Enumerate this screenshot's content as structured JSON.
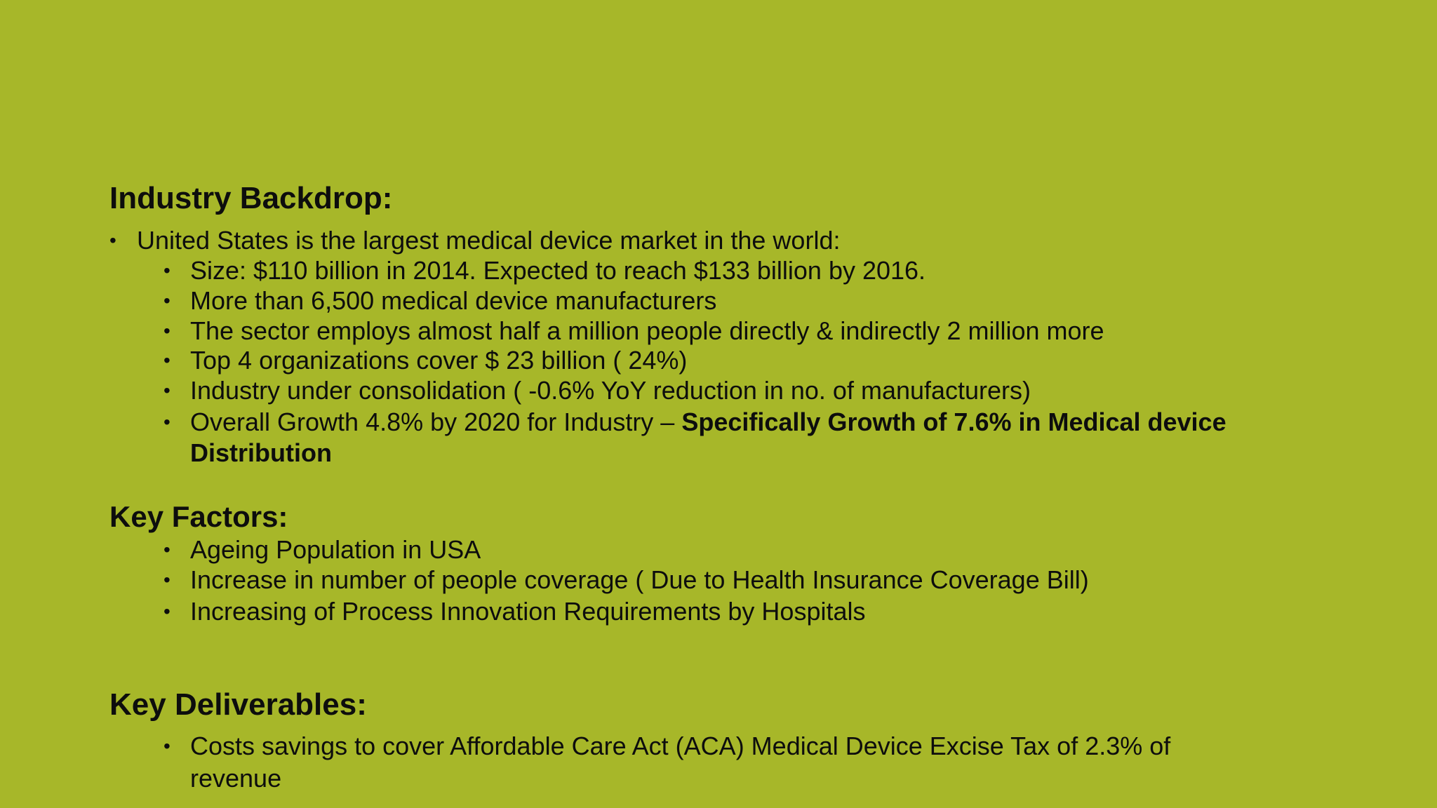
{
  "backdrop": {
    "heading": "Industry Backdrop:",
    "intro": "United States is the largest medical device market in the world:",
    "items": [
      "Size: $110 billion in 2014. Expected to reach $133 billion by 2016.",
      "More than 6,500 medical device manufacturers",
      "The sector employs almost half a million people directly & indirectly 2 million more",
      "Top 4 organizations cover $ 23 billion ( 24%)",
      "Industry under consolidation ( -0.6% YoY reduction in no. of manufacturers)"
    ],
    "growth_plain": "Overall Growth 4.8% by 2020 for Industry – ",
    "growth_bold_line1": "Specifically Growth of 7.6% in Medical device",
    "growth_bold_line2": "Distribution"
  },
  "factors": {
    "heading": "Key Factors:",
    "items": [
      "Ageing Population in USA",
      "Increase in number of people coverage ( Due to Health Insurance Coverage Bill)",
      "Increasing of Process Innovation Requirements by Hospitals"
    ]
  },
  "deliverables": {
    "heading": "Key Deliverables:",
    "item1_line1": "Costs savings to cover Affordable Care Act (ACA) Medical Device Excise Tax of 2.3% of",
    "item1_line2": "revenue"
  }
}
